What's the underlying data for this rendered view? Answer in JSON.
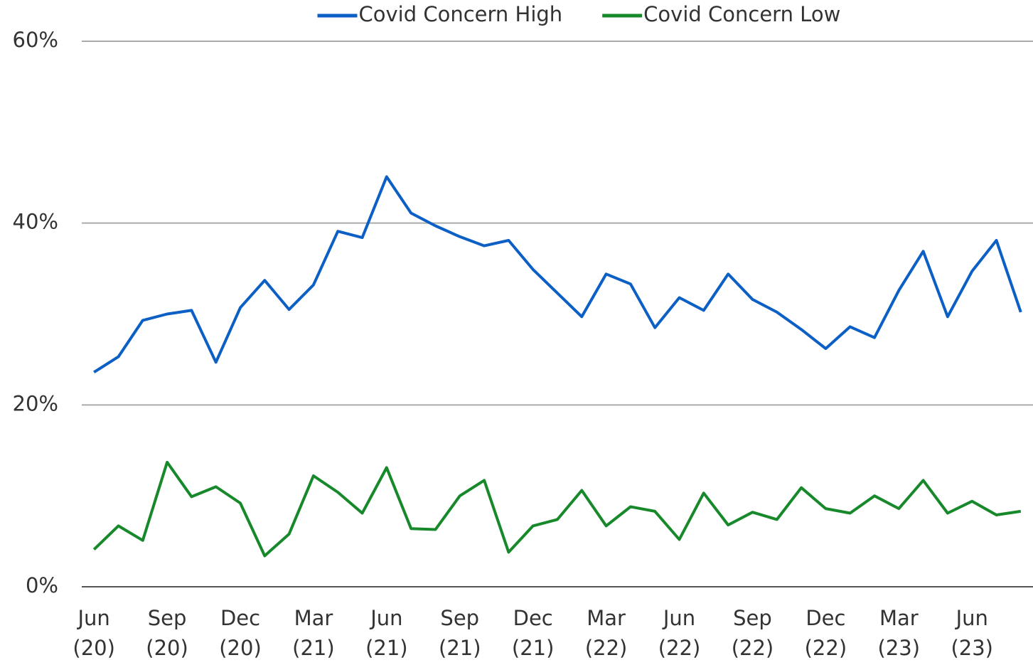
{
  "chart_data": {
    "type": "line",
    "categories": [
      "Jun (20)",
      null,
      null,
      "Sep (20)",
      null,
      null,
      "Dec (20)",
      null,
      null,
      "Mar (21)",
      null,
      null,
      "Jun (21)",
      null,
      null,
      "Sep (21)",
      null,
      null,
      "Dec (21)",
      null,
      null,
      "Mar (22)",
      null,
      null,
      "Jun (22)",
      null,
      null,
      "Sep (22)",
      null,
      null,
      "Dec (22)",
      null,
      null,
      "Mar (23)",
      null,
      null,
      "Jun (23)",
      null,
      null
    ],
    "series": [
      {
        "name": "Covid Concern High",
        "color": "#0b5fc5",
        "values": [
          23.6,
          25.3,
          29.3,
          30.0,
          30.4,
          24.7,
          30.7,
          33.7,
          30.5,
          33.2,
          39.1,
          38.4,
          45.1,
          41.1,
          39.7,
          38.5,
          37.5,
          38.1,
          34.9,
          32.3,
          29.7,
          34.4,
          33.3,
          28.5,
          31.8,
          30.4,
          34.4,
          31.6,
          30.2,
          28.3,
          26.2,
          28.6,
          27.4,
          32.6,
          36.9,
          29.7,
          34.7,
          38.1,
          30.2
        ]
      },
      {
        "name": "Covid Concern Low",
        "color": "#17892b",
        "values": [
          4.1,
          6.7,
          5.1,
          13.7,
          9.9,
          11.0,
          9.2,
          3.4,
          5.8,
          12.2,
          10.4,
          8.1,
          13.1,
          6.4,
          6.3,
          10.0,
          11.7,
          3.8,
          6.7,
          7.4,
          10.6,
          6.7,
          8.8,
          8.3,
          5.2,
          10.3,
          6.8,
          8.2,
          7.4,
          10.9,
          8.6,
          8.1,
          10.0,
          8.6,
          11.7,
          8.1,
          9.4,
          7.9,
          8.3
        ]
      }
    ],
    "ylim": [
      0,
      60
    ],
    "yticks": [
      {
        "value": 0,
        "label": "0%"
      },
      {
        "value": 20,
        "label": "20%"
      },
      {
        "value": 40,
        "label": "40%"
      },
      {
        "value": 60,
        "label": "60%"
      }
    ],
    "grid": true,
    "legend": "top"
  }
}
